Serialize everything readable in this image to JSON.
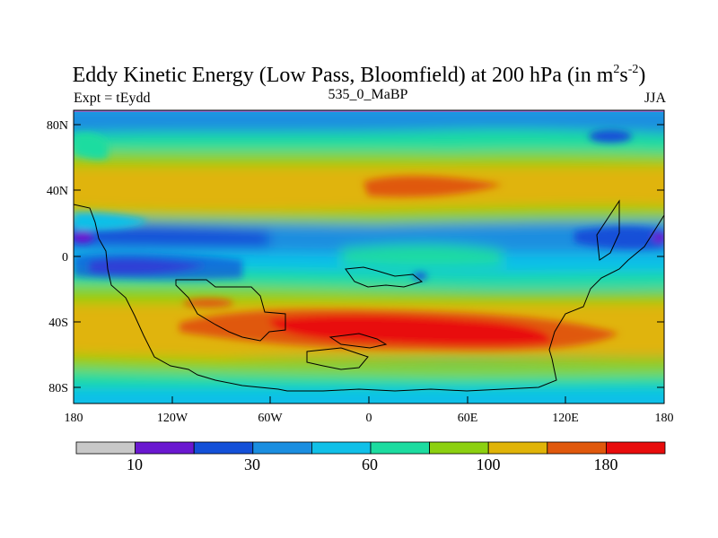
{
  "title": {
    "main": "Eddy Kinetic Energy (Low Pass, Bloomfield) at 200 hPa (in m",
    "sup1": "2",
    "mid": "s",
    "sup2": "-2",
    "close": ")"
  },
  "subtitle": {
    "left": "Expt = tEydd",
    "center": "535_0_MaBP",
    "right": "JJA"
  },
  "axes": {
    "lon_labels": [
      "180",
      "120W",
      "60W",
      "0",
      "60E",
      "120E",
      "180"
    ],
    "lat_labels": [
      "80N",
      "40N",
      "0",
      "40S",
      "80S"
    ]
  },
  "colorbar": {
    "colors": [
      "#c8c8c8",
      "#6a18d0",
      "#1450d8",
      "#1a8ee0",
      "#10c0e8",
      "#1cdca0",
      "#8cd010",
      "#e0b408",
      "#e0580c",
      "#e80c0c"
    ],
    "labels": [
      "10",
      "30",
      "60",
      "100",
      "180"
    ]
  },
  "colors": {
    "frame": "#000000",
    "polar_edge": "#9070d0",
    "coast": "#000000"
  }
}
